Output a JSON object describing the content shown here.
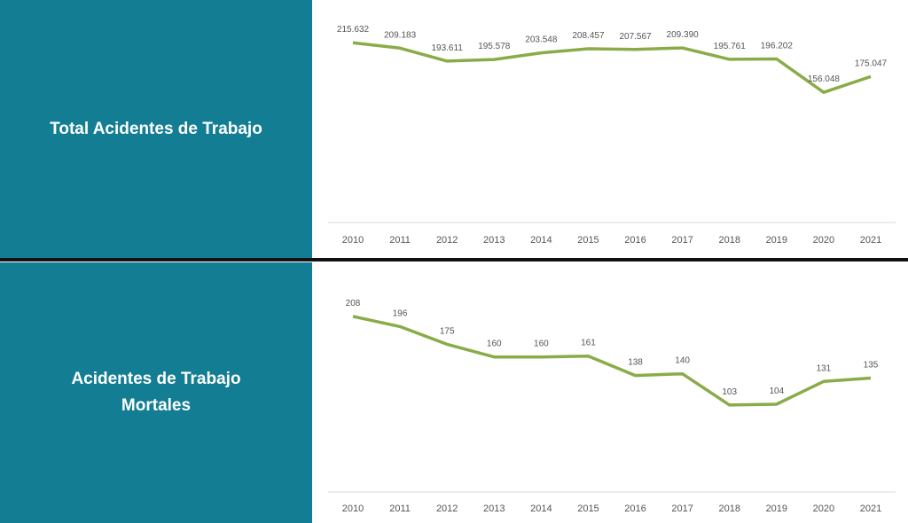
{
  "chart_data": [
    {
      "type": "line",
      "title": "Total Acidentes de Trabajo",
      "categories": [
        "2010",
        "2011",
        "2012",
        "2013",
        "2014",
        "2015",
        "2016",
        "2017",
        "2018",
        "2019",
        "2020",
        "2021"
      ],
      "values": [
        215632,
        209183,
        193611,
        195578,
        203548,
        208457,
        207567,
        209390,
        195761,
        196202,
        156048,
        175047
      ],
      "labels": [
        "215.632",
        "209.183",
        "193.611",
        "195.578",
        "203.548",
        "208.457",
        "207.567",
        "209.390",
        "195.761",
        "196.202",
        "156.048",
        "175.047"
      ],
      "ylim": [
        0,
        235000
      ],
      "grid": false,
      "color": "#8aac48"
    },
    {
      "type": "line",
      "title": "Acidentes de Trabajo Mortales",
      "categories": [
        "2010",
        "2011",
        "2012",
        "2013",
        "2014",
        "2015",
        "2016",
        "2017",
        "2018",
        "2019",
        "2020",
        "2021"
      ],
      "values": [
        208,
        196,
        175,
        160,
        160,
        161,
        138,
        140,
        103,
        104,
        131,
        135
      ],
      "labels": [
        "208",
        "196",
        "175",
        "160",
        "160",
        "161",
        "138",
        "140",
        "103",
        "104",
        "131",
        "135"
      ],
      "ylim": [
        0,
        230
      ],
      "grid": false,
      "color": "#8aac48"
    }
  ],
  "panels": {
    "top_title": "Total Acidentes de Trabajo",
    "bottom_title_line1": "Acidentes de Trabajo",
    "bottom_title_line2": "Mortales"
  },
  "colors": {
    "panel": "#137d93",
    "line": "#8aac48",
    "divider": "#111111"
  }
}
